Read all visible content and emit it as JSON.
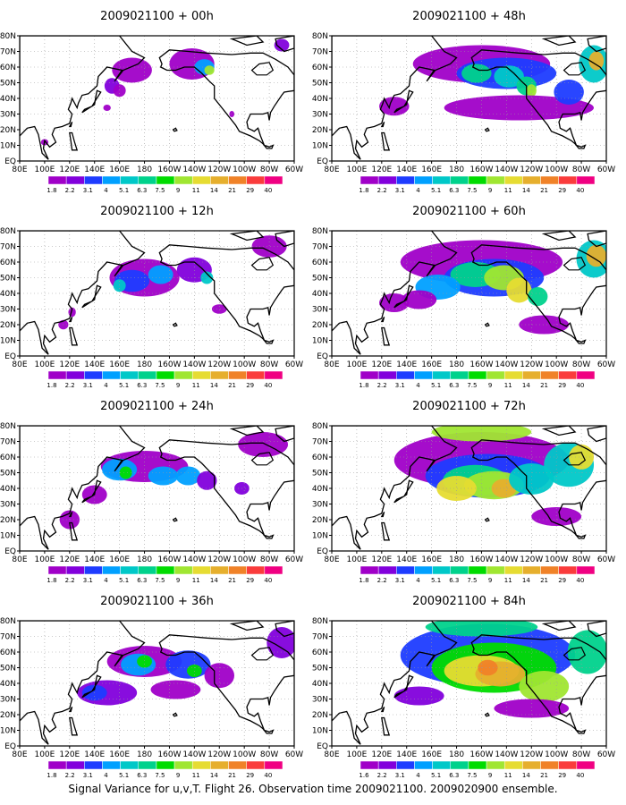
{
  "caption": "Signal Variance for u,v,T. Flight 26. Observation time 2009021100. 2009020900 ensemble.",
  "chart_data": {
    "type": "heatmap",
    "x_ticks": [
      "80E",
      "100E",
      "120E",
      "140E",
      "160E",
      "180",
      "160W",
      "140W",
      "120W",
      "100W",
      "80W",
      "60W"
    ],
    "y_ticks": [
      "EQ",
      "10N",
      "20N",
      "30N",
      "40N",
      "50N",
      "60N",
      "70N",
      "80N"
    ],
    "colorbar": {
      "levels": [
        "1.8",
        "2.2",
        "3.1",
        "4",
        "5.1",
        "6.3",
        "7.5",
        "9",
        "11",
        "14",
        "21",
        "29",
        "40"
      ],
      "levels_last_panel": [
        "1.6",
        "2.2",
        "3.1",
        "4",
        "5.1",
        "6.3",
        "7.5",
        "9",
        "11",
        "14",
        "21",
        "29",
        "40"
      ],
      "colors": [
        "#a000c8",
        "#8200dc",
        "#1e3cff",
        "#00a0ff",
        "#00c8c8",
        "#00d28c",
        "#00dc00",
        "#a0e632",
        "#e6dc32",
        "#e6af2d",
        "#f08228",
        "#fa3c3c",
        "#f00082"
      ]
    },
    "panels": [
      {
        "title": "2009021100 + 00h",
        "lead_hours": 0
      },
      {
        "title": "2009021100 + 48h",
        "lead_hours": 48
      },
      {
        "title": "2009021100 + 12h",
        "lead_hours": 12
      },
      {
        "title": "2009021100 + 60h",
        "lead_hours": 60
      },
      {
        "title": "2009021100 + 24h",
        "lead_hours": 24
      },
      {
        "title": "2009021100 + 72h",
        "lead_hours": 72
      },
      {
        "title": "2009021100 + 36h",
        "lead_hours": 36
      },
      {
        "title": "2009021100 + 84h",
        "lead_hours": 84
      }
    ]
  }
}
